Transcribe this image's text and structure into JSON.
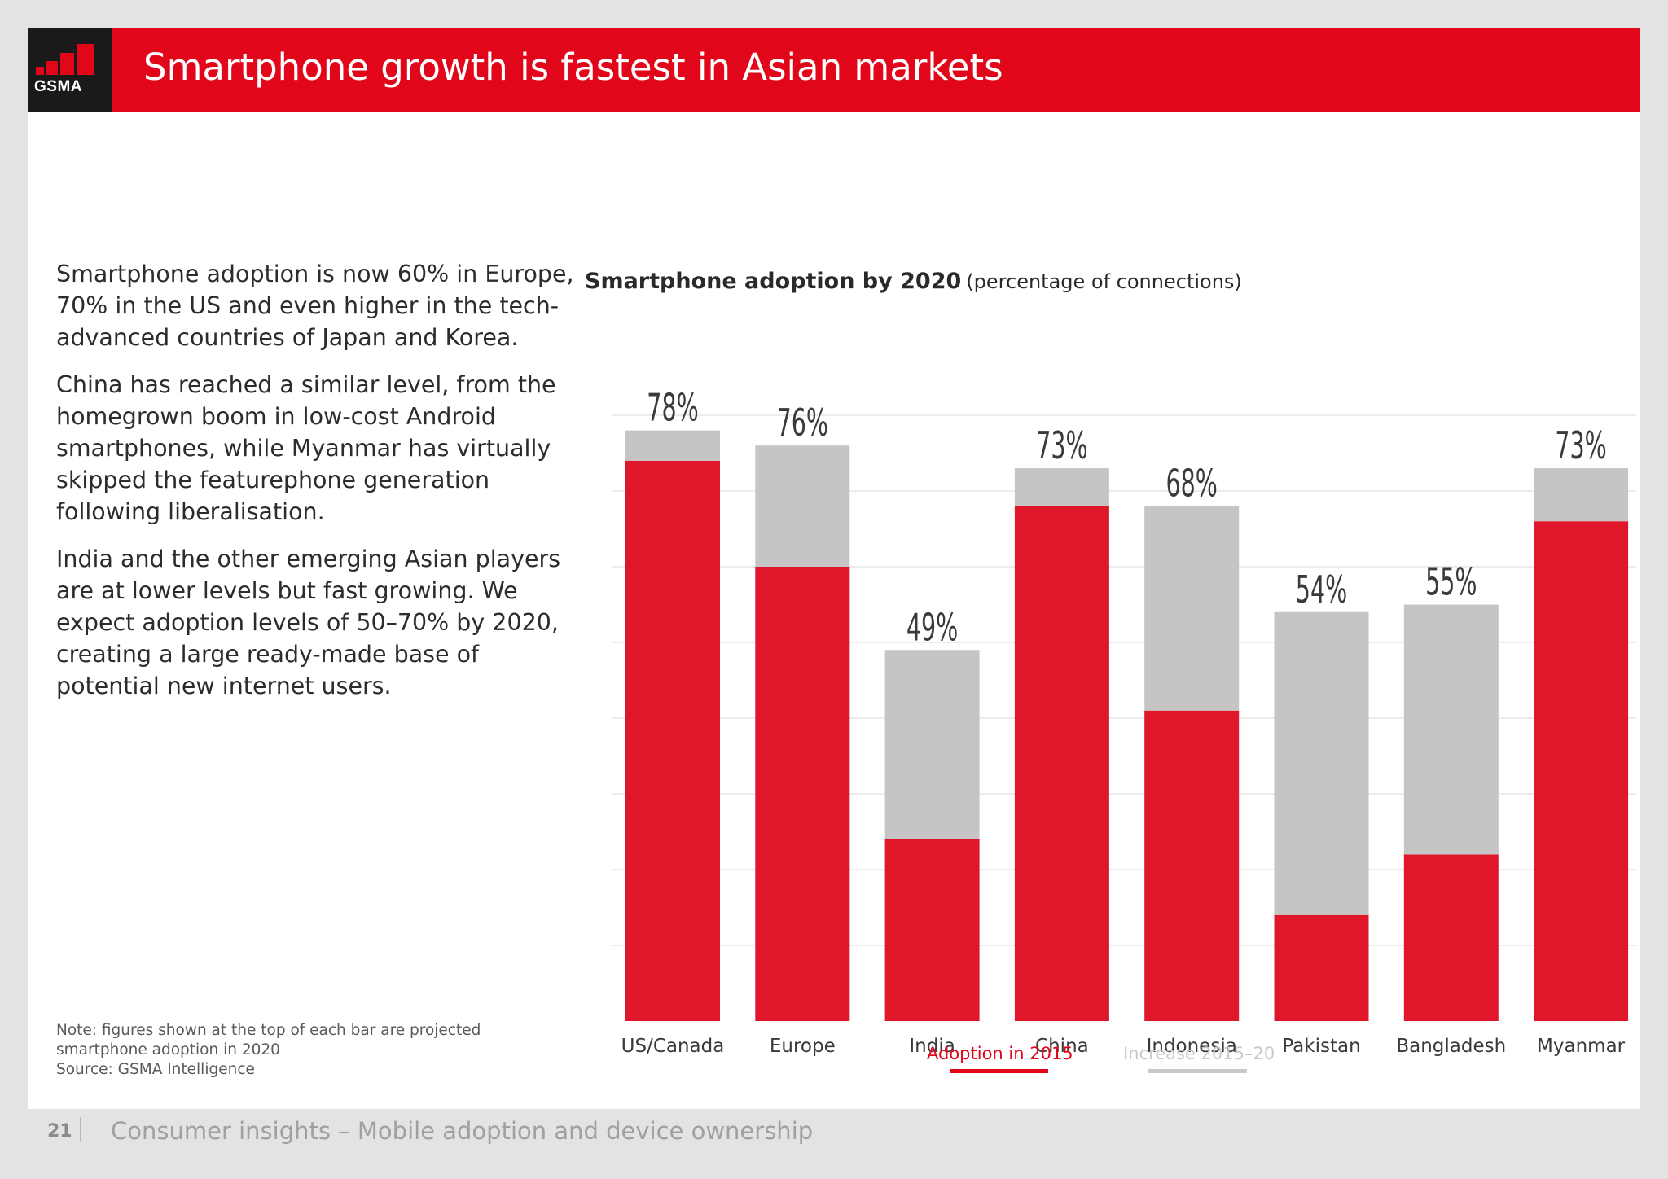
{
  "header": {
    "logo_text": "GSMA",
    "title": "Smartphone growth is fastest in Asian markets"
  },
  "body": {
    "paragraphs": [
      "Smartphone adoption is now 60% in Europe, 70% in the US and even higher in the tech-advanced countries of Japan and Korea.",
      "China has reached a similar level, from the homegrown boom in low-cost Android smartphones, while Myanmar has virtually skipped the featurephone generation following liberalisation.",
      "India and the other emerging Asian players are at lower levels but fast growing. We expect adoption levels of 50–70% by 2020, creating a large ready-made base of potential new internet users."
    ],
    "note_lines": [
      "Note: figures shown at the top of each bar are projected",
      "smartphone adoption in 2020",
      "Source: GSMA Intelligence"
    ]
  },
  "chart_data": {
    "type": "bar",
    "stacked": true,
    "title": "Smartphone adoption by 2020",
    "subtitle": "(percentage of connections)",
    "categories": [
      "US/Canada",
      "Europe",
      "India",
      "China",
      "Indonesia",
      "Pakistan",
      "Bangladesh",
      "Myanmar"
    ],
    "series": [
      {
        "name": "Adoption in 2015",
        "color": "#e0172a",
        "values": [
          74,
          60,
          24,
          68,
          41,
          14,
          22,
          66
        ]
      },
      {
        "name": "Increase 2015–20",
        "color": "#c6c5c6",
        "values": [
          4,
          16,
          25,
          5,
          27,
          40,
          33,
          7
        ]
      }
    ],
    "data_labels": [
      "78%",
      "76%",
      "49%",
      "73%",
      "68%",
      "54%",
      "55%",
      "73%"
    ],
    "ylim": [
      0,
      80
    ],
    "grid": true,
    "legend": "bottom"
  },
  "footer": {
    "page_number": "21",
    "text": "Consumer insights – Mobile adoption and device ownership"
  }
}
